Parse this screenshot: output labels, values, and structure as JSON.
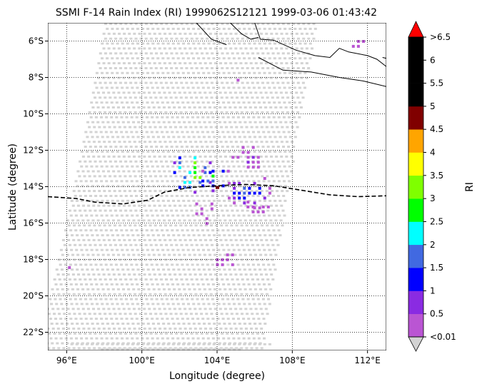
{
  "title": "SSMI F-14 Rain Index (RI) 1999062S12121 1999-03-06 01:43:42",
  "chart_data": {
    "type": "heatmap",
    "title": "SSMI F-14 Rain Index (RI) 1999062S12121 1999-03-06 01:43:42",
    "xlabel": "Longitude (degree)",
    "ylabel": "Latitude (degree)",
    "xlim": [
      95.0,
      113.0
    ],
    "ylim": [
      -23.0,
      -5.0
    ],
    "x_ticks": [
      "96°E",
      "100°E",
      "104°E",
      "108°E",
      "112°E"
    ],
    "y_ticks": [
      "6°S",
      "8°S",
      "10°S",
      "12°S",
      "14°S",
      "16°S",
      "18°S",
      "20°S",
      "22°S"
    ],
    "x_tick_values": [
      96,
      100,
      104,
      108,
      112
    ],
    "y_tick_values": [
      -6,
      -8,
      -10,
      -12,
      -14,
      -16,
      -18,
      -20,
      -22
    ],
    "grid": true,
    "swath_color": "#d3d3d3",
    "colorbar": {
      "label": "RI",
      "tick_labels": [
        "<0.01",
        "0.5",
        "1",
        "1.5",
        "2",
        "2.5",
        "3",
        "3.5",
        "4",
        "4.5",
        "5",
        "5.5",
        "6",
        ">6.5"
      ],
      "colors": [
        "#ba55d3",
        "#8a2be2",
        "#0000ff",
        "#4169e1",
        "#00ffff",
        "#00ff00",
        "#7fff00",
        "#ffff00",
        "#ffa500",
        "#800000",
        "#000000",
        "#000000",
        "#000000"
      ],
      "under_color": "#d3d3d3",
      "over_color": "#ff0000"
    },
    "track": [
      {
        "lon": 95.0,
        "lat": -14.55
      },
      {
        "lon": 96.5,
        "lat": -14.65
      },
      {
        "lon": 97.5,
        "lat": -14.85
      },
      {
        "lon": 99.0,
        "lat": -14.95
      },
      {
        "lon": 100.3,
        "lat": -14.75
      },
      {
        "lon": 101.2,
        "lat": -14.3
      },
      {
        "lon": 102.5,
        "lat": -14.05
      },
      {
        "lon": 104.0,
        "lat": -13.95
      },
      {
        "lon": 105.5,
        "lat": -13.88
      },
      {
        "lon": 107.0,
        "lat": -13.95
      },
      {
        "lon": 108.5,
        "lat": -14.2
      },
      {
        "lon": 110.0,
        "lat": -14.45
      },
      {
        "lon": 111.5,
        "lat": -14.55
      },
      {
        "lon": 113.0,
        "lat": -14.5
      }
    ],
    "storm_center": {
      "lon": 104.0,
      "lat": -14.05
    },
    "rain_clusters": [
      {
        "lon": 102.6,
        "lat": -13.1,
        "rx": 1.2,
        "ry": 1.3,
        "peak": 3.4
      },
      {
        "lon": 103.9,
        "lat": -13.6,
        "rx": 1.0,
        "ry": 0.8,
        "peak": 2.8
      },
      {
        "lon": 105.6,
        "lat": -14.2,
        "rx": 1.3,
        "ry": 1.0,
        "peak": 1.6
      },
      {
        "lon": 103.2,
        "lat": -15.4,
        "rx": 0.9,
        "ry": 0.8,
        "peak": 0.3
      },
      {
        "lon": 105.6,
        "lat": -12.3,
        "rx": 1.1,
        "ry": 0.8,
        "peak": 0.6
      },
      {
        "lon": 106.2,
        "lat": -15.1,
        "rx": 0.9,
        "ry": 0.6,
        "peak": 0.2
      },
      {
        "lon": 104.2,
        "lat": -17.9,
        "rx": 0.8,
        "ry": 0.5,
        "peak": 0.4
      },
      {
        "lon": 105.4,
        "lat": -8.1,
        "rx": 0.9,
        "ry": 0.3,
        "peak": 0.4
      },
      {
        "lon": 96.4,
        "lat": -18.5,
        "rx": 0.6,
        "ry": 0.4,
        "peak": 0.2
      },
      {
        "lon": 111.4,
        "lat": -5.9,
        "rx": 0.5,
        "ry": 0.5,
        "peak": 0.3
      }
    ],
    "coastlines": [
      [
        [
          104.7,
          -5.0
        ],
        [
          105.3,
          -5.6
        ],
        [
          105.8,
          -5.9
        ],
        [
          106.2,
          -5.8
        ]
      ],
      [
        [
          106.0,
          -5.0
        ],
        [
          106.3,
          -5.9
        ],
        [
          107.0,
          -5.95
        ],
        [
          108.2,
          -6.5
        ],
        [
          109.2,
          -6.8
        ],
        [
          110.0,
          -6.9
        ],
        [
          110.5,
          -6.4
        ],
        [
          111.0,
          -6.6
        ],
        [
          112.0,
          -6.8
        ],
        [
          112.5,
          -7.0
        ],
        [
          113.0,
          -7.4
        ]
      ],
      [
        [
          106.2,
          -6.9
        ],
        [
          107.5,
          -7.6
        ],
        [
          109.0,
          -7.7
        ],
        [
          110.5,
          -8.0
        ],
        [
          111.8,
          -8.2
        ],
        [
          113.0,
          -8.5
        ]
      ],
      [
        [
          112.8,
          -6.9
        ],
        [
          113.0,
          -6.95
        ]
      ],
      [
        [
          102.9,
          -5.0
        ],
        [
          103.7,
          -5.9
        ],
        [
          104.5,
          -6.2
        ]
      ]
    ]
  }
}
